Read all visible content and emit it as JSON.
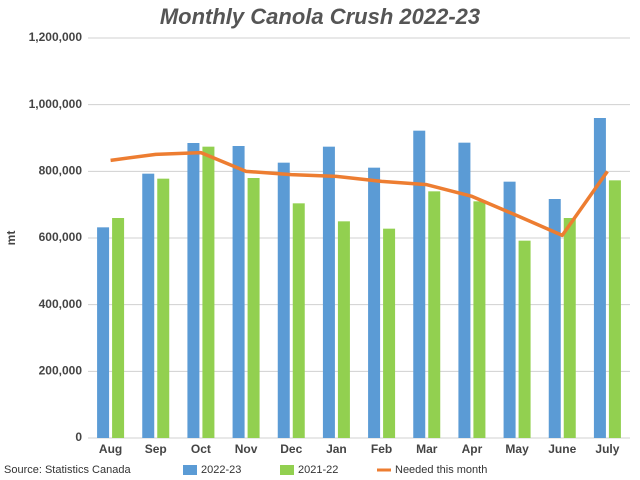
{
  "chart_data": {
    "type": "bar",
    "title": "Monthly Canola Crush 2022-23",
    "y_label": "mt",
    "source": "Source: Statistics Canada",
    "categories": [
      "Aug",
      "Sep",
      "Oct",
      "Nov",
      "Dec",
      "Jan",
      "Feb",
      "Mar",
      "Apr",
      "May",
      "June",
      "July"
    ],
    "series": [
      {
        "name": "2022-23",
        "type": "bar",
        "color": "#5b9bd5",
        "values": [
          632000,
          793000,
          885000,
          876000,
          826000,
          874000,
          811000,
          922000,
          886000,
          769000,
          717000,
          960000
        ]
      },
      {
        "name": "2021-22",
        "type": "bar",
        "color": "#92d050",
        "values": [
          660000,
          778000,
          874000,
          780000,
          704000,
          650000,
          628000,
          740000,
          710000,
          592000,
          660000,
          773000
        ]
      },
      {
        "name": "Needed this month",
        "type": "line",
        "color": "#ed7d31",
        "values": [
          833000,
          851000,
          856000,
          800000,
          790000,
          785000,
          770000,
          760000,
          725000,
          667000,
          608000,
          800000
        ]
      }
    ],
    "ylim": [
      0,
      1200000
    ],
    "yticks": [
      0,
      {
        "value": 200000,
        "label": "200,000"
      },
      {
        "value": 400000,
        "label": "400,000"
      },
      {
        "value": 600000,
        "label": "600,000"
      },
      {
        "value": 800000,
        "label": "800,000"
      },
      {
        "value": 1000000,
        "label": "1,000,000"
      },
      {
        "value": 1200000,
        "label": "1,200,000"
      }
    ],
    "grid": true
  }
}
